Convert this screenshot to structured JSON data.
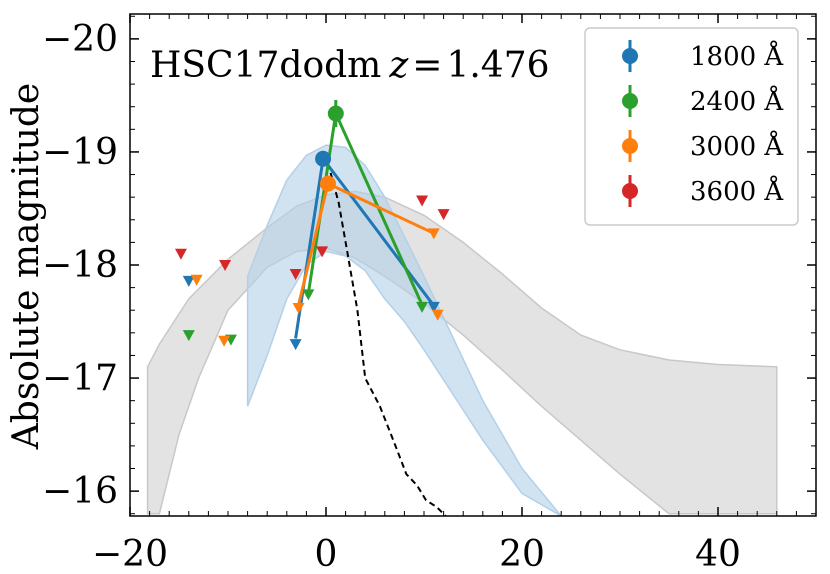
{
  "chart_data": {
    "type": "scatter",
    "title": "",
    "annotation": {
      "name": "HSC17dodm",
      "z_label": "z",
      "z_value": "1.476"
    },
    "xlabel": "",
    "ylabel": "Absolute magnitude",
    "xlim": [
      -20,
      50
    ],
    "ylim": [
      -15.78,
      -20.22
    ],
    "y_inverted": true,
    "x_ticks": [
      -20,
      0,
      20,
      40
    ],
    "x_tick_labels": [
      "−20",
      "0",
      "20",
      "40"
    ],
    "y_ticks": [
      -16,
      -17,
      -18,
      -19,
      -20
    ],
    "y_tick_labels": [
      "−16",
      "−17",
      "−18",
      "−19",
      "−20"
    ],
    "legend_position": "top-right",
    "grid": false,
    "gray_band": {
      "color": "#c8c8c8",
      "upper": [
        [
          -18.2,
          -17.1
        ],
        [
          -17,
          -17.3
        ],
        [
          -14,
          -17.7
        ],
        [
          -10,
          -18.05
        ],
        [
          -6,
          -18.33
        ],
        [
          -3,
          -18.52
        ],
        [
          0,
          -18.62
        ],
        [
          3,
          -18.65
        ],
        [
          6,
          -18.6
        ],
        [
          10,
          -18.44
        ],
        [
          14,
          -18.2
        ],
        [
          18,
          -17.92
        ],
        [
          22,
          -17.62
        ],
        [
          26,
          -17.38
        ],
        [
          30,
          -17.25
        ],
        [
          35,
          -17.16
        ],
        [
          40,
          -17.12
        ],
        [
          46,
          -17.1
        ]
      ],
      "lower": [
        [
          46,
          -15.8
        ],
        [
          35,
          -15.8
        ],
        [
          30,
          -16.15
        ],
        [
          26,
          -16.45
        ],
        [
          22,
          -16.75
        ],
        [
          18,
          -17.07
        ],
        [
          14,
          -17.38
        ],
        [
          10,
          -17.66
        ],
        [
          6,
          -17.9
        ],
        [
          3,
          -18.06
        ],
        [
          0,
          -18.15
        ],
        [
          -3,
          -18.12
        ],
        [
          -6,
          -17.98
        ],
        [
          -10,
          -17.6
        ],
        [
          -13,
          -17.0
        ],
        [
          -15,
          -16.5
        ],
        [
          -17,
          -15.8
        ],
        [
          -18.2,
          -15.8
        ]
      ]
    },
    "blue_band": {
      "color": "#b3d0e8",
      "upper": [
        [
          -8,
          -17.9
        ],
        [
          -6,
          -18.35
        ],
        [
          -4,
          -18.75
        ],
        [
          -2,
          -18.97
        ],
        [
          0,
          -19.06
        ],
        [
          2,
          -19.04
        ],
        [
          4,
          -18.88
        ],
        [
          6,
          -18.6
        ],
        [
          8,
          -18.25
        ],
        [
          10,
          -17.9
        ],
        [
          13,
          -17.35
        ],
        [
          16,
          -16.8
        ],
        [
          20,
          -16.2
        ],
        [
          24,
          -15.78
        ],
        [
          28.3,
          -15.78
        ]
      ],
      "lower": [
        [
          24,
          -15.78
        ],
        [
          20,
          -15.98
        ],
        [
          16,
          -16.45
        ],
        [
          13,
          -16.85
        ],
        [
          10,
          -17.25
        ],
        [
          8,
          -17.5
        ],
        [
          6,
          -17.7
        ],
        [
          4,
          -17.95
        ],
        [
          2,
          -18.08
        ],
        [
          0,
          -18.12
        ],
        [
          -2,
          -18.0
        ],
        [
          -4,
          -17.7
        ],
        [
          -6,
          -17.2
        ],
        [
          -8,
          -16.75
        ]
      ]
    },
    "dashed_model": {
      "color": "#000000",
      "points": [
        [
          0.2,
          -18.9
        ],
        [
          1.3,
          -18.55
        ],
        [
          2.2,
          -18.1
        ],
        [
          3.2,
          -17.6
        ],
        [
          4.0,
          -17.0
        ],
        [
          5.5,
          -16.75
        ],
        [
          7.0,
          -16.42
        ],
        [
          8.2,
          -16.15
        ],
        [
          9.3,
          -16.05
        ],
        [
          10.2,
          -15.92
        ],
        [
          11.3,
          -15.86
        ],
        [
          12.2,
          -15.78
        ]
      ]
    },
    "series": [
      {
        "name": "1800 Å",
        "color": "#1f77b4",
        "detections": [
          [
            -0.3,
            -18.94
          ]
        ],
        "connecting_line": [
          [
            -3.1,
            -17.35
          ],
          [
            -0.3,
            -18.94
          ],
          [
            11.0,
            -17.64
          ]
        ],
        "upper_limits": [
          [
            -14.0,
            -17.86
          ],
          [
            -3.1,
            -17.3
          ],
          [
            11.0,
            -17.63
          ]
        ]
      },
      {
        "name": "2400 Å",
        "color": "#2ca02c",
        "detections": [
          [
            1.0,
            -19.34
          ]
        ],
        "errorbars": [
          [
            1.0,
            -19.46,
            -19.22
          ]
        ],
        "connecting_line": [
          [
            -1.8,
            -17.75
          ],
          [
            1.0,
            -19.34
          ],
          [
            9.8,
            -17.65
          ]
        ],
        "upper_limits": [
          [
            -14.0,
            -17.38
          ],
          [
            -9.7,
            -17.34
          ],
          [
            -1.8,
            -17.74
          ],
          [
            9.8,
            -17.63
          ]
        ]
      },
      {
        "name": "3000 Å",
        "color": "#ff7f0e",
        "detections": [
          [
            0.2,
            -18.72
          ]
        ],
        "connecting_line": [
          [
            -2.8,
            -17.65
          ],
          [
            0.2,
            -18.72
          ],
          [
            11.0,
            -18.28
          ]
        ],
        "upper_limits": [
          [
            -13.2,
            -17.87
          ],
          [
            -10.4,
            -17.33
          ],
          [
            -2.8,
            -17.62
          ],
          [
            11.4,
            -17.56
          ],
          [
            11.0,
            -18.28
          ]
        ]
      },
      {
        "name": "3600 Å",
        "color": "#d62728",
        "detections": [],
        "upper_limits": [
          [
            -14.8,
            -18.1
          ],
          [
            -10.3,
            -18.0
          ],
          [
            -3.1,
            -17.92
          ],
          [
            -0.4,
            -18.12
          ],
          [
            9.8,
            -18.57
          ],
          [
            12.0,
            -18.45
          ]
        ]
      }
    ]
  }
}
